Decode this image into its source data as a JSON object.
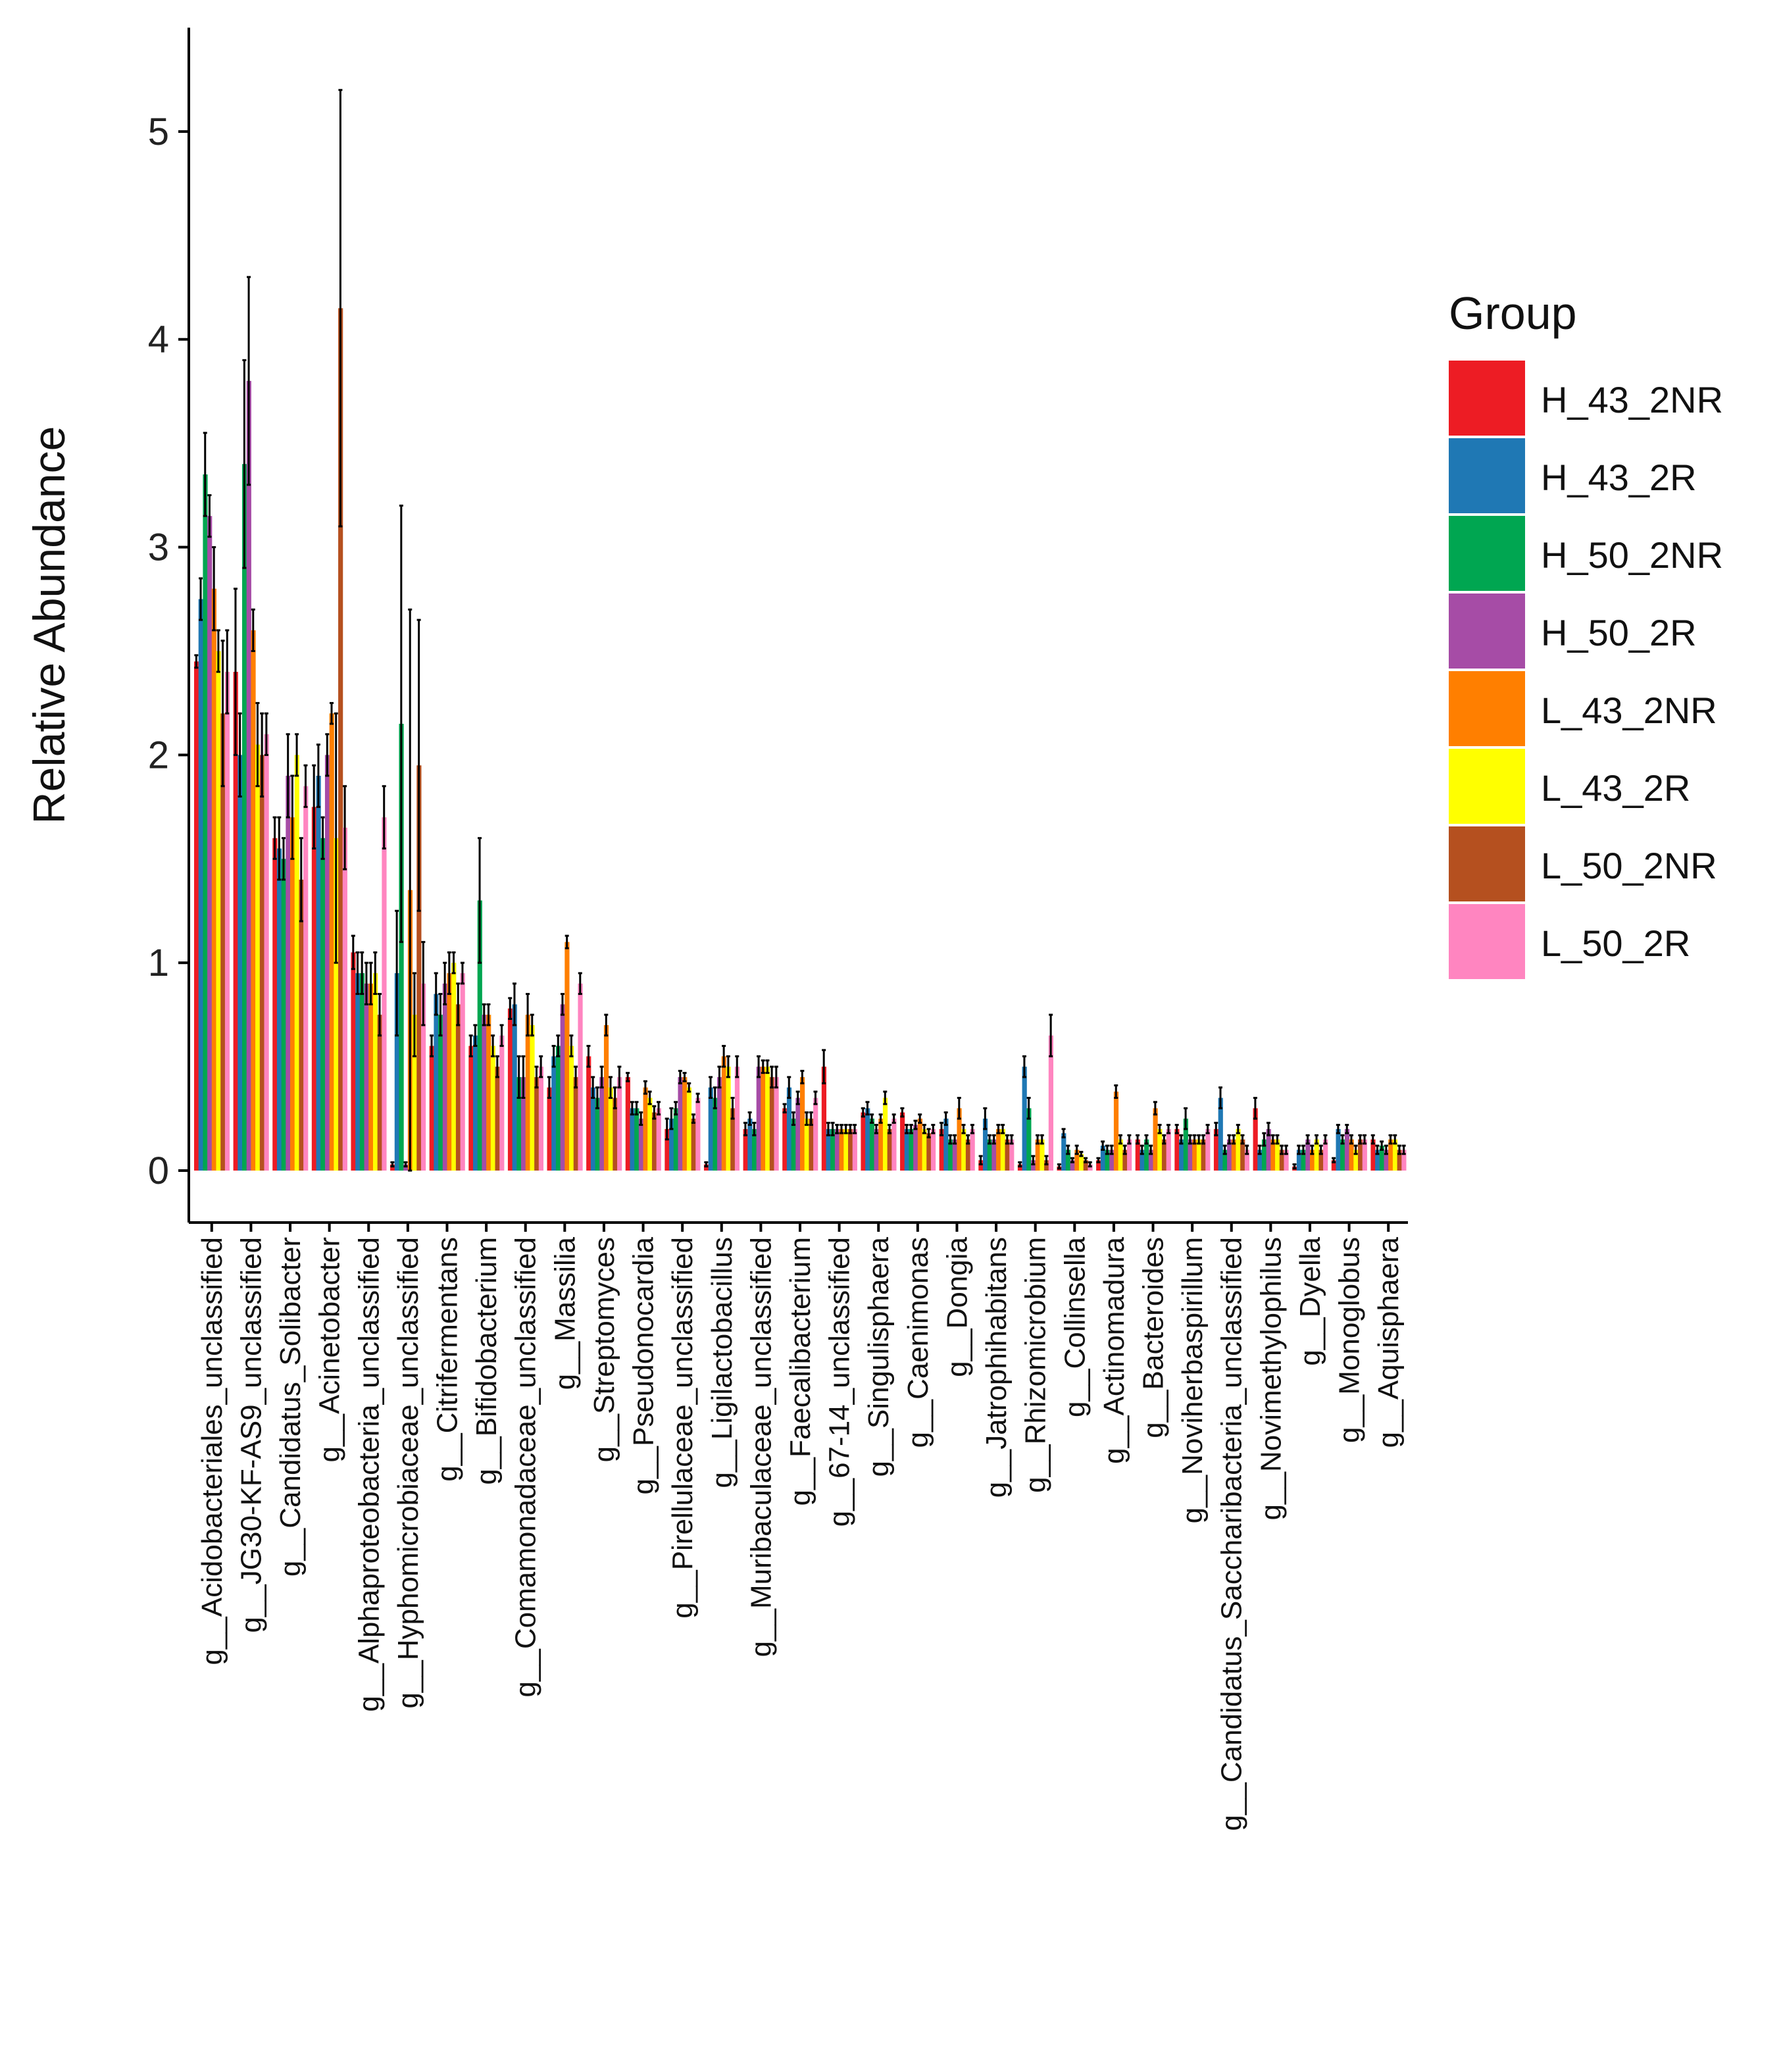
{
  "chart_data": {
    "type": "bar",
    "title": "",
    "xlabel": "",
    "ylabel": "Relative Abundance",
    "ylim": [
      -0.25,
      5.5
    ],
    "yticks": [
      0,
      1,
      2,
      3,
      4,
      5
    ],
    "legend": {
      "title": "Group",
      "position": "right"
    },
    "categories": [
      "g__Acidobacteriales_unclassified",
      "g__JG30-KF-AS9_unclassified",
      "g__Candidatus_Solibacter",
      "g__Acinetobacter",
      "g__Alphaproteobacteria_unclassified",
      "g__Hyphomicrobiaceae_unclassified",
      "g__Citrifermentans",
      "g__Bifidobacterium",
      "g__Comamonadaceae_unclassified",
      "g__Massilia",
      "g__Streptomyces",
      "g__Pseudonocardia",
      "g__Pirellulaceae_unclassified",
      "g__Ligilactobacillus",
      "g__Muribaculaceae_unclassified",
      "g__Faecalibacterium",
      "g__67-14_unclassified",
      "g__Singulisphaera",
      "g__Caenimonas",
      "g__Dongia",
      "g__Jatrophihabitans",
      "g__Rhizomicrobium",
      "g__Collinsella",
      "g__Actinomadura",
      "g__Bacteroides",
      "g__Noviherbaspirillum",
      "g__Candidatus_Saccharibacteria_unclassified",
      "g__Novimethylophilus",
      "g__Dyella",
      "g__Monoglobus",
      "g__Aquisphaera"
    ],
    "series": [
      {
        "name": "H_43_2NR",
        "color": "#ED1C24",
        "values": [
          2.45,
          2.4,
          1.6,
          1.75,
          1.05,
          0.03,
          0.6,
          0.6,
          0.78,
          0.4,
          0.55,
          0.45,
          0.2,
          0.03,
          0.2,
          0.3,
          0.5,
          0.28,
          0.28,
          0.2,
          0.05,
          0.03,
          0.02,
          0.05,
          0.15,
          0.2,
          0.2,
          0.3,
          0.02,
          0.05,
          0.15
        ],
        "errors": [
          0.03,
          0.4,
          0.1,
          0.2,
          0.08,
          0.01,
          0.05,
          0.05,
          0.05,
          0.05,
          0.05,
          0.02,
          0.05,
          0.01,
          0.03,
          0.02,
          0.08,
          0.02,
          0.02,
          0.03,
          0.02,
          0.01,
          0.01,
          0.01,
          0.02,
          0.02,
          0.03,
          0.05,
          0.01,
          0.01,
          0.02
        ]
      },
      {
        "name": "H_43_2R",
        "color": "#1F78B4",
        "values": [
          2.75,
          2.0,
          1.55,
          1.9,
          0.95,
          0.95,
          0.85,
          0.65,
          0.8,
          0.55,
          0.4,
          0.3,
          0.25,
          0.4,
          0.25,
          0.4,
          0.2,
          0.3,
          0.2,
          0.25,
          0.25,
          0.5,
          0.18,
          0.12,
          0.1,
          0.15,
          0.35,
          0.1,
          0.1,
          0.2,
          0.1
        ],
        "errors": [
          0.1,
          0.2,
          0.15,
          0.15,
          0.1,
          0.3,
          0.1,
          0.05,
          0.1,
          0.05,
          0.05,
          0.03,
          0.05,
          0.05,
          0.03,
          0.05,
          0.03,
          0.03,
          0.02,
          0.03,
          0.05,
          0.05,
          0.02,
          0.02,
          0.02,
          0.02,
          0.05,
          0.02,
          0.02,
          0.02,
          0.02
        ]
      },
      {
        "name": "H_50_2NR",
        "color": "#00A651",
        "values": [
          3.35,
          3.4,
          1.5,
          1.6,
          0.95,
          2.15,
          0.75,
          1.3,
          0.45,
          0.6,
          0.35,
          0.3,
          0.3,
          0.35,
          0.2,
          0.25,
          0.2,
          0.25,
          0.2,
          0.15,
          0.15,
          0.3,
          0.1,
          0.1,
          0.15,
          0.25,
          0.1,
          0.15,
          0.1,
          0.15,
          0.12
        ],
        "errors": [
          0.2,
          0.5,
          0.1,
          0.1,
          0.1,
          1.05,
          0.1,
          0.3,
          0.1,
          0.05,
          0.05,
          0.03,
          0.03,
          0.05,
          0.03,
          0.03,
          0.03,
          0.02,
          0.02,
          0.02,
          0.02,
          0.05,
          0.02,
          0.02,
          0.02,
          0.05,
          0.02,
          0.03,
          0.02,
          0.02,
          0.02
        ]
      },
      {
        "name": "H_50_2R",
        "color": "#A64CA6",
        "values": [
          3.15,
          3.8,
          1.9,
          2.0,
          0.9,
          0.03,
          0.9,
          0.75,
          0.45,
          0.8,
          0.45,
          0.25,
          0.45,
          0.45,
          0.5,
          0.35,
          0.2,
          0.2,
          0.22,
          0.15,
          0.15,
          0.05,
          0.05,
          0.1,
          0.1,
          0.15,
          0.15,
          0.2,
          0.15,
          0.2,
          0.1
        ],
        "errors": [
          0.1,
          0.5,
          0.2,
          0.1,
          0.1,
          0.01,
          0.1,
          0.05,
          0.1,
          0.05,
          0.05,
          0.03,
          0.03,
          0.05,
          0.05,
          0.03,
          0.02,
          0.02,
          0.02,
          0.02,
          0.02,
          0.02,
          0.01,
          0.02,
          0.02,
          0.02,
          0.02,
          0.03,
          0.02,
          0.02,
          0.02
        ]
      },
      {
        "name": "L_43_2NR",
        "color": "#FF7F00",
        "values": [
          2.8,
          2.6,
          1.7,
          2.2,
          0.9,
          1.35,
          0.95,
          0.75,
          0.75,
          1.1,
          0.7,
          0.4,
          0.45,
          0.55,
          0.5,
          0.45,
          0.2,
          0.25,
          0.25,
          0.3,
          0.2,
          0.15,
          0.1,
          0.38,
          0.3,
          0.15,
          0.15,
          0.15,
          0.1,
          0.15,
          0.15
        ],
        "errors": [
          0.2,
          0.1,
          0.2,
          0.05,
          0.1,
          1.35,
          0.1,
          0.05,
          0.1,
          0.03,
          0.05,
          0.03,
          0.02,
          0.05,
          0.03,
          0.03,
          0.02,
          0.02,
          0.02,
          0.05,
          0.02,
          0.02,
          0.02,
          0.03,
          0.03,
          0.02,
          0.02,
          0.02,
          0.02,
          0.02,
          0.02
        ]
      },
      {
        "name": "L_43_2R",
        "color": "#FFFF00",
        "values": [
          2.5,
          2.05,
          2.0,
          1.6,
          0.95,
          0.75,
          1.0,
          0.6,
          0.7,
          0.6,
          0.4,
          0.35,
          0.4,
          0.5,
          0.5,
          0.25,
          0.2,
          0.35,
          0.2,
          0.2,
          0.2,
          0.15,
          0.08,
          0.15,
          0.2,
          0.15,
          0.2,
          0.15,
          0.15,
          0.1,
          0.15
        ],
        "errors": [
          0.1,
          0.2,
          0.1,
          0.6,
          0.1,
          0.2,
          0.05,
          0.05,
          0.05,
          0.05,
          0.05,
          0.03,
          0.02,
          0.05,
          0.03,
          0.03,
          0.02,
          0.03,
          0.02,
          0.02,
          0.02,
          0.02,
          0.01,
          0.02,
          0.02,
          0.02,
          0.02,
          0.02,
          0.02,
          0.02,
          0.02
        ]
      },
      {
        "name": "L_50_2NR",
        "color": "#B5501F",
        "values": [
          2.2,
          2.0,
          1.4,
          4.15,
          0.75,
          1.95,
          0.8,
          0.5,
          0.45,
          0.45,
          0.35,
          0.28,
          0.25,
          0.3,
          0.45,
          0.25,
          0.2,
          0.2,
          0.18,
          0.15,
          0.15,
          0.05,
          0.05,
          0.1,
          0.15,
          0.15,
          0.15,
          0.1,
          0.1,
          0.15,
          0.1
        ],
        "errors": [
          0.35,
          0.2,
          0.2,
          1.05,
          0.1,
          0.7,
          0.1,
          0.05,
          0.05,
          0.05,
          0.05,
          0.03,
          0.02,
          0.05,
          0.05,
          0.03,
          0.02,
          0.02,
          0.02,
          0.02,
          0.02,
          0.02,
          0.01,
          0.02,
          0.02,
          0.02,
          0.02,
          0.02,
          0.02,
          0.02,
          0.02
        ]
      },
      {
        "name": "L_50_2R",
        "color": "#FF85C0",
        "values": [
          2.4,
          2.1,
          1.85,
          1.65,
          1.7,
          0.9,
          0.95,
          0.65,
          0.5,
          0.9,
          0.45,
          0.3,
          0.35,
          0.5,
          0.45,
          0.35,
          0.2,
          0.25,
          0.2,
          0.2,
          0.15,
          0.65,
          0.03,
          0.15,
          0.2,
          0.2,
          0.1,
          0.1,
          0.15,
          0.15,
          0.1
        ],
        "errors": [
          0.2,
          0.1,
          0.1,
          0.2,
          0.15,
          0.2,
          0.05,
          0.05,
          0.05,
          0.05,
          0.05,
          0.03,
          0.02,
          0.05,
          0.05,
          0.03,
          0.02,
          0.02,
          0.02,
          0.02,
          0.02,
          0.1,
          0.01,
          0.02,
          0.02,
          0.02,
          0.02,
          0.02,
          0.02,
          0.02,
          0.02
        ]
      }
    ]
  }
}
